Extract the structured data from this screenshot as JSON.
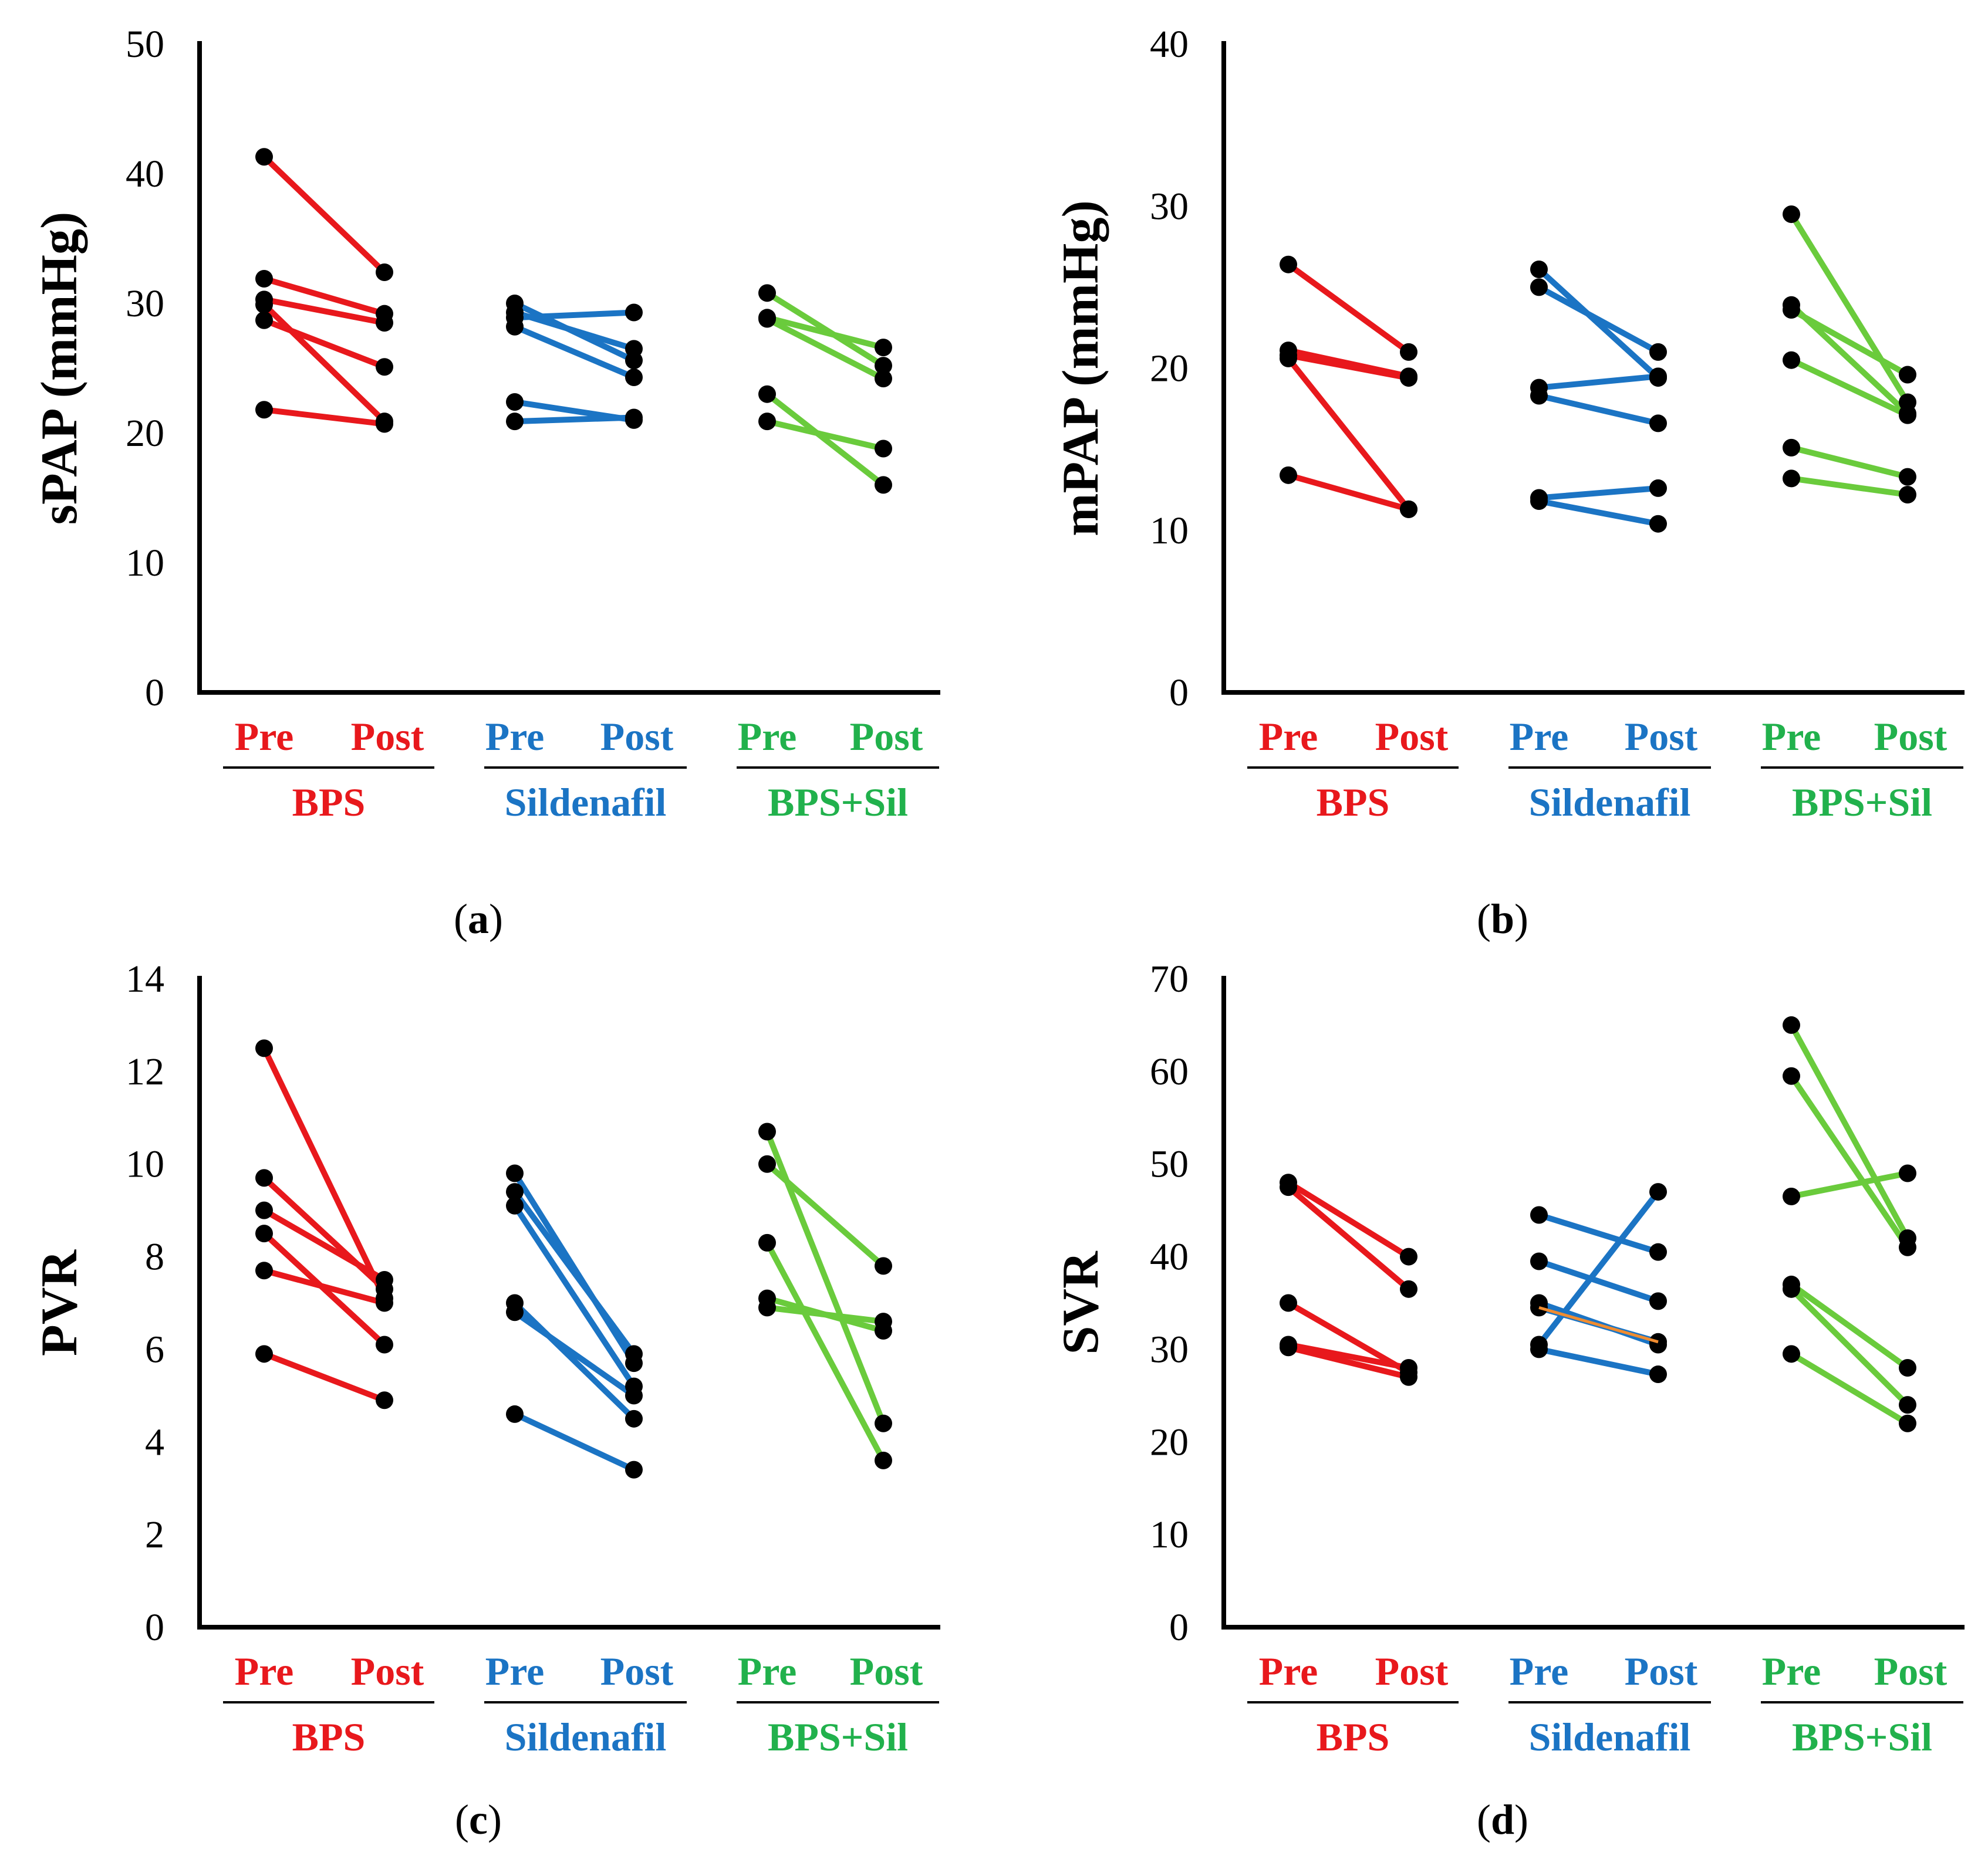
{
  "colors": {
    "BPS": "#e8181c",
    "Sildenafil": "#1b74c4",
    "BPS+Sil": "#6acb3c",
    "label_BPS": "#e8181c",
    "label_Sildenafil": "#1b74c4",
    "label_BPS+Sil": "#21b14c",
    "point": "#000000",
    "orange_line": "#f08c30"
  },
  "chart_data": [
    {
      "type": "line",
      "panel": "a",
      "caption": "a",
      "ylabel": "sPAP (mmHg)",
      "ylim": [
        0,
        50
      ],
      "yticks": [
        0,
        10,
        20,
        30,
        40,
        50
      ],
      "conditions": [
        "Pre",
        "Post"
      ],
      "groups": [
        {
          "name": "BPS",
          "pairs": [
            [
              41.3,
              32.4
            ],
            [
              31.9,
              29.2
            ],
            [
              30.3,
              28.5
            ],
            [
              29.9,
              20.9
            ],
            [
              28.7,
              25.1
            ],
            [
              21.8,
              20.7
            ]
          ]
        },
        {
          "name": "Sildenafil",
          "pairs": [
            [
              30.0,
              25.6
            ],
            [
              29.3,
              26.5
            ],
            [
              28.9,
              29.3
            ],
            [
              28.2,
              24.3
            ],
            [
              22.4,
              21.0
            ],
            [
              20.9,
              21.2
            ]
          ]
        },
        {
          "name": "BPS+Sil",
          "pairs": [
            [
              30.8,
              25.2
            ],
            [
              28.9,
              26.6
            ],
            [
              28.8,
              24.2
            ],
            [
              23.0,
              16.0
            ],
            [
              20.9,
              18.8
            ]
          ]
        }
      ]
    },
    {
      "type": "line",
      "panel": "b",
      "caption": "b",
      "ylabel": "mPAP (mmHg)",
      "ylim": [
        0,
        40
      ],
      "yticks": [
        0,
        10,
        20,
        30,
        40
      ],
      "conditions": [
        "Pre",
        "Post"
      ],
      "groups": [
        {
          "name": "BPS",
          "pairs": [
            [
              26.4,
              21.0
            ],
            [
              21.1,
              19.5
            ],
            [
              20.8,
              19.4
            ],
            [
              20.6,
              11.3
            ],
            [
              13.4,
              11.3
            ]
          ]
        },
        {
          "name": "Sildenafil",
          "pairs": [
            [
              26.1,
              19.4
            ],
            [
              25.0,
              21.0
            ],
            [
              18.8,
              19.5
            ],
            [
              18.3,
              16.6
            ],
            [
              12.0,
              12.6
            ],
            [
              11.8,
              10.4
            ]
          ]
        },
        {
          "name": "BPS+Sil",
          "pairs": [
            [
              29.5,
              17.9
            ],
            [
              23.9,
              17.2
            ],
            [
              23.6,
              19.6
            ],
            [
              20.5,
              17.1
            ],
            [
              15.1,
              13.3
            ],
            [
              13.2,
              12.2
            ]
          ]
        }
      ]
    },
    {
      "type": "line",
      "panel": "c",
      "caption": "c",
      "ylabel": "PVR",
      "ylim": [
        0,
        14
      ],
      "yticks": [
        0,
        2,
        4,
        6,
        8,
        10,
        12,
        14
      ],
      "conditions": [
        "Pre",
        "Post"
      ],
      "groups": [
        {
          "name": "BPS",
          "pairs": [
            [
              12.5,
              7.1
            ],
            [
              9.7,
              7.3
            ],
            [
              9.0,
              7.5
            ],
            [
              8.5,
              6.1
            ],
            [
              7.7,
              7.0
            ],
            [
              5.9,
              4.9
            ]
          ]
        },
        {
          "name": "Sildenafil",
          "pairs": [
            [
              9.8,
              5.7
            ],
            [
              9.4,
              5.9
            ],
            [
              9.1,
              5.2
            ],
            [
              7.0,
              4.5
            ],
            [
              6.8,
              5.0
            ],
            [
              4.6,
              3.4
            ]
          ]
        },
        {
          "name": "BPS+Sil",
          "pairs": [
            [
              10.7,
              4.4
            ],
            [
              10.0,
              7.8
            ],
            [
              8.3,
              3.6
            ],
            [
              7.1,
              6.4
            ],
            [
              6.9,
              6.6
            ]
          ]
        }
      ]
    },
    {
      "type": "line",
      "panel": "d",
      "caption": "d",
      "ylabel": "SVR",
      "ylim": [
        0,
        70
      ],
      "yticks": [
        0,
        10,
        20,
        30,
        40,
        50,
        60,
        70
      ],
      "conditions": [
        "Pre",
        "Post"
      ],
      "groups": [
        {
          "name": "BPS",
          "pairs": [
            [
              48.0,
              40.0
            ],
            [
              47.5,
              36.5
            ],
            [
              35.0,
              27.5
            ],
            [
              30.5,
              28.0
            ],
            [
              30.2,
              27.0
            ]
          ]
        },
        {
          "name": "Sildenafil",
          "pairs": [
            [
              44.5,
              40.5
            ],
            [
              39.5,
              35.2
            ],
            [
              35.0,
              30.5
            ],
            [
              34.5,
              30.8
            ],
            [
              30.5,
              47.0
            ],
            [
              30.0,
              27.3
            ]
          ]
        },
        {
          "name": "BPS+Sil",
          "pairs": [
            [
              65.0,
              42.0
            ],
            [
              59.5,
              41.0
            ],
            [
              46.5,
              49.0
            ],
            [
              37.0,
              28.0
            ],
            [
              36.5,
              24.0
            ],
            [
              29.5,
              22.0
            ]
          ]
        }
      ],
      "orange_pairs": [
        [
          34.5,
          30.8
        ]
      ]
    }
  ]
}
